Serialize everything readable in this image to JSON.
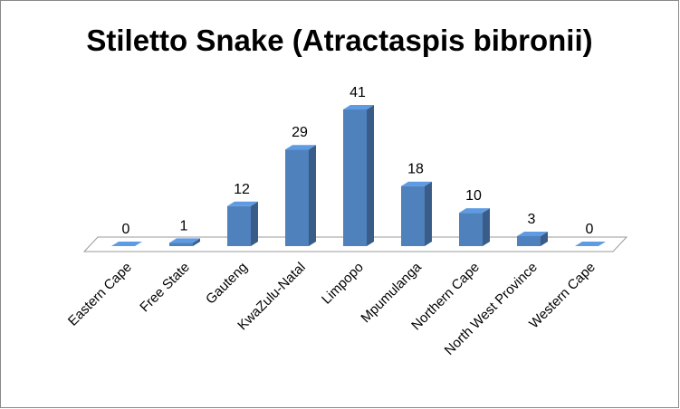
{
  "chart_data": {
    "type": "bar3d",
    "title": "Stiletto Snake (Atractaspis bibronii)",
    "categories": [
      "Eastern Cape",
      "Free State",
      "Gauteng",
      "KwaZulu-Natal",
      "Limpopo",
      "Mpumulanga",
      "Northern Cape",
      "North West Province",
      "Western Cape"
    ],
    "values": [
      0,
      1,
      12,
      29,
      41,
      18,
      10,
      3,
      0
    ],
    "color": "#4f81bd"
  }
}
